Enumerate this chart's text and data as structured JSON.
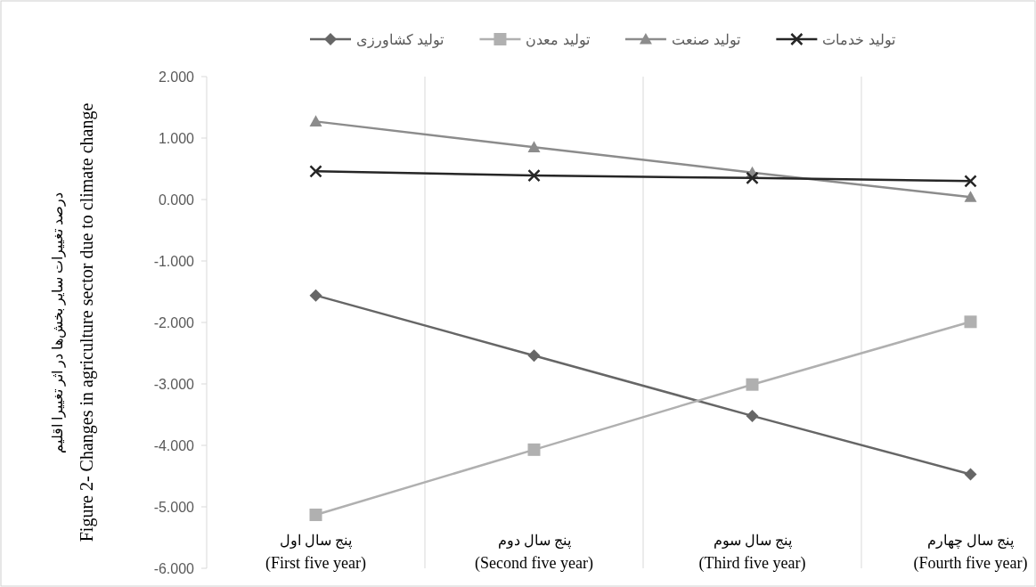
{
  "chart_data": {
    "type": "line",
    "ylabel": "درصد تغییرات سایر بخش‌ها در اثر تغییرا اقلیم\nFigure 2- Changes in agriculture sector due to climate change",
    "categories": [
      "پنج سال اول\n(First five year)",
      "پنج سال دوم\n(Second five year)",
      "پنج سال سوم\n(Third five year)",
      "پنج سال چهارم\n(Fourth five year)"
    ],
    "series": [
      {
        "name": "تولید کشاورزی",
        "color": "#666666",
        "marker": "diamond",
        "values": [
          -1.56,
          -2.54,
          -3.52,
          -4.47
        ]
      },
      {
        "name": "تولید معدن",
        "color": "#b0b0b0",
        "marker": "square",
        "values": [
          -5.13,
          -4.07,
          -3.01,
          -1.99
        ]
      },
      {
        "name": "تولید صنعت",
        "color": "#8c8c8c",
        "marker": "triangle",
        "values": [
          1.27,
          0.85,
          0.44,
          0.04
        ]
      },
      {
        "name": "تولید خدمات",
        "color": "#262626",
        "marker": "cross",
        "values": [
          0.46,
          0.39,
          0.35,
          0.3
        ]
      }
    ],
    "ylim": [
      -6,
      2
    ],
    "yticks": [
      {
        "value": -6,
        "label": "-6.000"
      },
      {
        "value": -5,
        "label": "-5.000"
      },
      {
        "value": -4,
        "label": "-4.000"
      },
      {
        "value": -3,
        "label": "-3.000"
      },
      {
        "value": -2,
        "label": "-2.000"
      },
      {
        "value": -1,
        "label": "-1.000"
      },
      {
        "value": 0,
        "label": "0.000"
      },
      {
        "value": 1,
        "label": "1.000"
      },
      {
        "value": 2,
        "label": "2.000"
      }
    ],
    "grid": "x",
    "legend": "top",
    "line_style": "solid"
  }
}
